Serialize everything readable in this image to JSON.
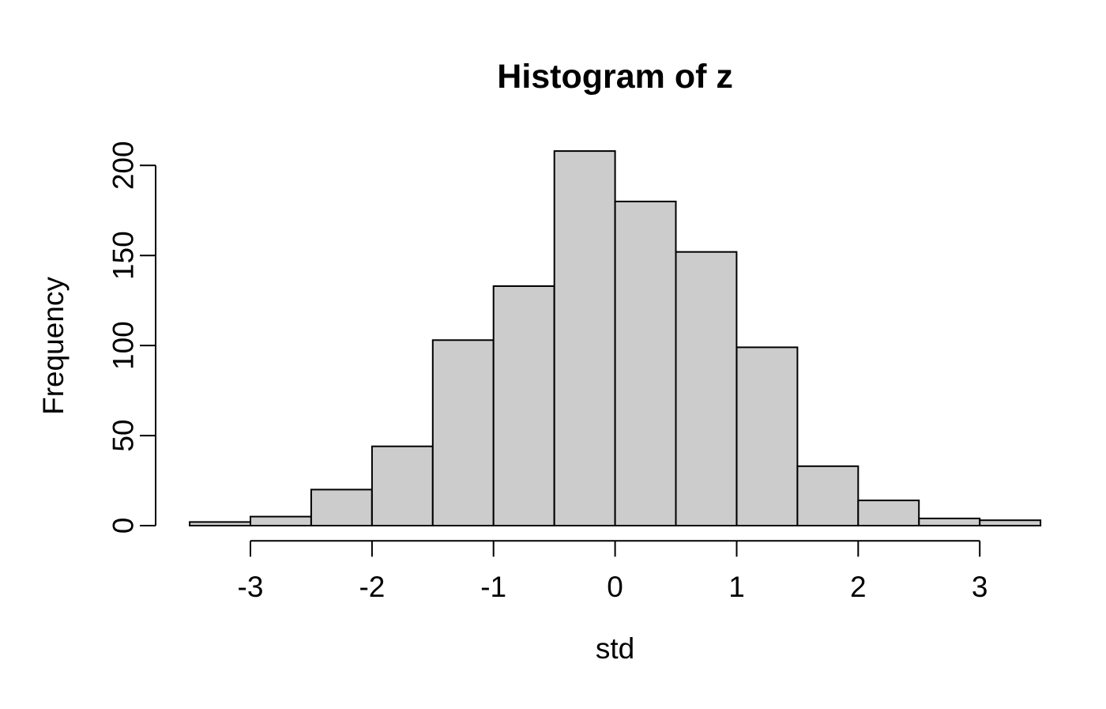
{
  "chart_data": {
    "type": "bar",
    "variant": "histogram",
    "title": "Histogram of z",
    "xlabel": "std",
    "ylabel": "Frequency",
    "bin_edges": [
      -3.5,
      -3.0,
      -2.5,
      -2.0,
      -1.5,
      -1.0,
      -0.5,
      0.0,
      0.5,
      1.0,
      1.5,
      2.0,
      2.5,
      3.0,
      3.5
    ],
    "counts": [
      2,
      5,
      20,
      44,
      103,
      133,
      208,
      180,
      152,
      99,
      33,
      14,
      4,
      3
    ],
    "x_ticks": [
      -3,
      -2,
      -1,
      0,
      1,
      2,
      3
    ],
    "x_tick_labels": [
      "-3",
      "-2",
      "-1",
      "0",
      "1",
      "2",
      "3"
    ],
    "y_ticks": [
      0,
      50,
      100,
      150,
      200
    ],
    "y_tick_labels": [
      "0",
      "50",
      "100",
      "150",
      "200"
    ],
    "xlim": [
      -3.5,
      3.5
    ],
    "ylim": [
      0,
      208
    ],
    "grid": false,
    "legend": null,
    "colors": {
      "bar_fill": "#CCCCCC",
      "bar_stroke": "#000000",
      "axis": "#000000",
      "text": "#000000",
      "background": "#FFFFFF"
    }
  }
}
